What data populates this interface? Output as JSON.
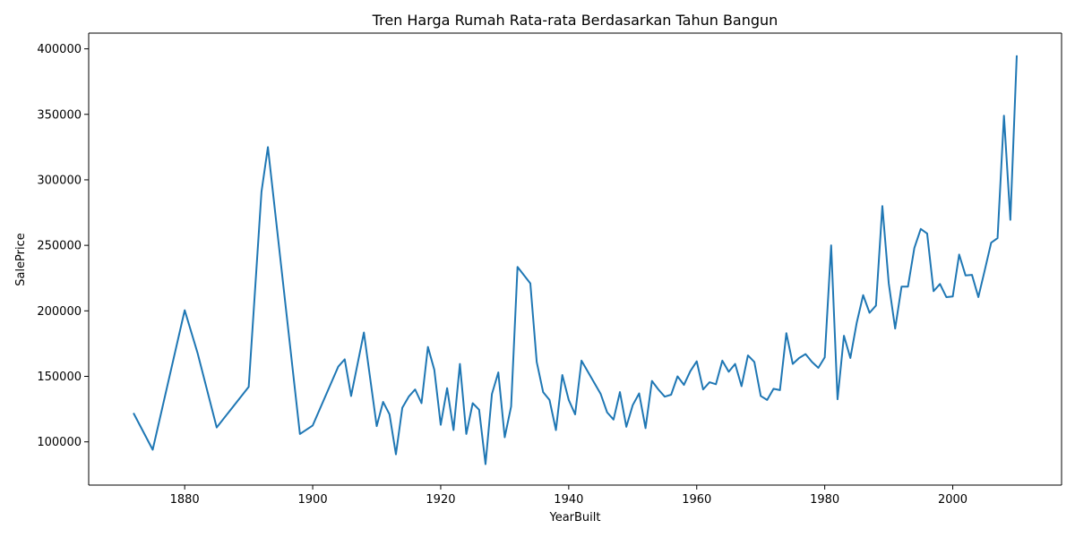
{
  "chart_data": {
    "type": "line",
    "title": "Tren Harga Rumah Rata-rata Berdasarkan Tahun Bangun",
    "xlabel": "YearBuilt",
    "ylabel": "SalePrice",
    "xlim": [
      1865,
      2017
    ],
    "ylim": [
      67000,
      412000
    ],
    "xticks": [
      1880,
      1900,
      1920,
      1940,
      1960,
      1980,
      2000
    ],
    "yticks": [
      100000,
      150000,
      200000,
      250000,
      300000,
      350000,
      400000
    ],
    "grid": false,
    "line_color": "#1f77b4",
    "x": [
      1872,
      1875,
      1880,
      1882,
      1885,
      1890,
      1892,
      1893,
      1898,
      1900,
      1904,
      1905,
      1906,
      1908,
      1910,
      1911,
      1912,
      1913,
      1914,
      1915,
      1916,
      1917,
      1918,
      1919,
      1920,
      1921,
      1922,
      1923,
      1924,
      1925,
      1926,
      1927,
      1928,
      1929,
      1930,
      1931,
      1932,
      1934,
      1935,
      1936,
      1937,
      1938,
      1939,
      1940,
      1941,
      1942,
      1945,
      1946,
      1947,
      1948,
      1949,
      1950,
      1951,
      1952,
      1953,
      1954,
      1955,
      1956,
      1957,
      1958,
      1959,
      1960,
      1961,
      1962,
      1963,
      1964,
      1965,
      1966,
      1967,
      1968,
      1969,
      1970,
      1971,
      1972,
      1973,
      1974,
      1975,
      1976,
      1977,
      1978,
      1979,
      1980,
      1981,
      1982,
      1983,
      1984,
      1985,
      1986,
      1987,
      1988,
      1989,
      1990,
      1991,
      1992,
      1993,
      1994,
      1995,
      1996,
      1997,
      1998,
      1999,
      2000,
      2001,
      2002,
      2003,
      2004,
      2005,
      2006,
      2007,
      2008,
      2009,
      2010
    ],
    "y": [
      122000,
      94000,
      200500,
      168000,
      111000,
      142000,
      291000,
      325000,
      106000,
      112500,
      157500,
      163000,
      135000,
      183500,
      112000,
      130500,
      121000,
      90500,
      126000,
      134500,
      140000,
      129500,
      172500,
      155000,
      113000,
      141000,
      109000,
      159500,
      106000,
      129500,
      124500,
      83000,
      136500,
      153000,
      103500,
      127000,
      233500,
      221000,
      161000,
      138000,
      132000,
      109000,
      151000,
      132000,
      121000,
      162000,
      136500,
      122500,
      117000,
      138000,
      111500,
      128000,
      137000,
      110500,
      146500,
      140000,
      134500,
      136000,
      150000,
      143500,
      154000,
      161500,
      140000,
      145500,
      144000,
      162000,
      153500,
      159500,
      142500,
      166000,
      161000,
      135000,
      132000,
      140500,
      139500,
      183000,
      159500,
      164000,
      167000,
      161000,
      156500,
      164500,
      250000,
      132500,
      181000,
      164000,
      191000,
      212000,
      198500,
      204000,
      280000,
      221000,
      186500,
      218500,
      218500,
      248000,
      262500,
      259000,
      215000,
      220500,
      210500,
      211000,
      243000,
      227000,
      227500,
      210500,
      231000,
      252000,
      255500,
      349000,
      269500,
      395000
    ]
  }
}
